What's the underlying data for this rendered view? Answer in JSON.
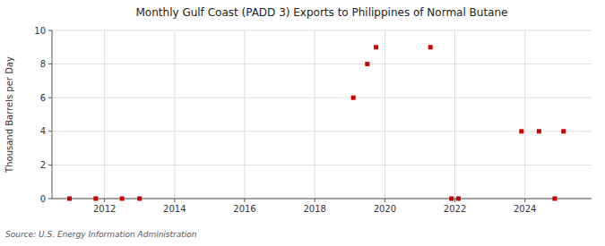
{
  "chart_data": {
    "type": "scatter",
    "title": "Monthly Gulf Coast (PADD 3) Exports to Philippines of Normal Butane",
    "ylabel": "Thousand Barrels per Day",
    "annotations": [
      "Source: U.S. Energy Information Administration"
    ],
    "x": [
      2011.0,
      2011.75,
      2012.5,
      2013.0,
      2019.1,
      2019.5,
      2019.75,
      2021.3,
      2021.9,
      2022.1,
      2023.9,
      2024.4,
      2024.85,
      2025.1
    ],
    "values": [
      0.0,
      0.0,
      0.0,
      0.0,
      6.0,
      8.0,
      9.0,
      9.0,
      0.0,
      0.0,
      4.0,
      4.0,
      0.0,
      4.0
    ],
    "color": "#cc0000",
    "marker": "square",
    "xlim": [
      2010.5,
      2025.9
    ],
    "ylim": [
      0,
      10
    ],
    "xticks": [
      2012,
      2014,
      2016,
      2018,
      2020,
      2022,
      2024
    ],
    "yticks": [
      0,
      2,
      4,
      6,
      8,
      10
    ],
    "grid": true
  }
}
